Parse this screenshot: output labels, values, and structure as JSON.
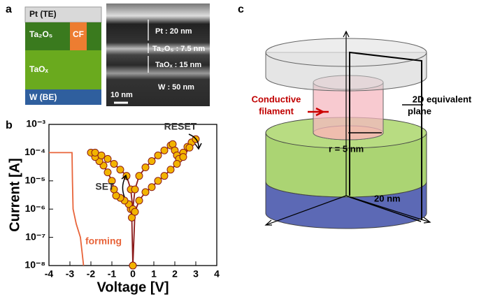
{
  "panel_a": {
    "label": "a",
    "layers": [
      "Pt (TE)",
      "Ta₂O₅",
      "CF",
      "TaOₓ",
      "W (BE)"
    ],
    "sem_labels": [
      "Pt : 20 nm",
      "Ta₂O₅ : 7.5 nm",
      "TaOₓ : 15 nm",
      "W : 50 nm"
    ],
    "scale_bar": "10 nm"
  },
  "panel_b": {
    "label": "b"
  },
  "panel_c": {
    "label": "c",
    "filament_label": [
      "Conductive",
      "filament"
    ],
    "plane_label": [
      "2D equivalent",
      "plane"
    ],
    "radius_label": "r = 5 nm",
    "width_label": "20 nm"
  },
  "chart_data": {
    "type": "line",
    "x_label": "Voltage [V]",
    "y_label": "Current [A]",
    "log_y": true,
    "xlim": [
      -4,
      4
    ],
    "xticks": [
      -4,
      -3,
      -2,
      -1,
      0,
      1,
      2,
      3,
      4
    ],
    "ylim": [
      1e-08,
      0.001
    ],
    "yticks": [
      {
        "value": 1e-08,
        "label": "10⁻⁸"
      },
      {
        "value": 1e-07,
        "label": "10⁻⁷"
      },
      {
        "value": 1e-06,
        "label": "10⁻⁶"
      },
      {
        "value": 1e-05,
        "label": "10⁻⁵"
      },
      {
        "value": 0.0001,
        "label": "10⁻⁴"
      },
      {
        "value": 0.001,
        "label": "10⁻³"
      }
    ],
    "series": [
      {
        "color": "#e8643a",
        "markers": false,
        "x": [
          -4,
          -2.9,
          -2.88,
          -2.85,
          -2.7,
          -2.5,
          -2.35
        ],
        "values": [
          0.0001,
          0.0001,
          1e-05,
          1e-06,
          3e-07,
          1e-07,
          1e-08
        ]
      },
      {
        "color": "#8b1a1a",
        "markers": true,
        "marker_color": "#f2b400",
        "x": [
          0,
          -0.05,
          -0.1,
          -0.2,
          -0.4,
          -0.6,
          -0.8,
          -0.9,
          -1,
          -1.2,
          -1.4,
          -1.6,
          -1.8,
          -2,
          -1.8,
          -1.5,
          -1.2,
          -0.9,
          -0.6,
          -0.3,
          -0.1,
          0,
          0.1,
          0.3,
          0.6,
          0.9,
          1.2,
          1.5,
          1.8,
          1.9,
          2.0,
          2.1,
          2.2,
          2.4,
          2.6,
          2.8,
          3.0,
          2.7,
          2.4,
          2.1,
          1.8,
          1.5,
          1.2,
          0.9,
          0.6,
          0.3,
          0.1,
          0
        ],
        "values": [
          1e-08,
          5e-07,
          1e-06,
          1.5e-06,
          2e-06,
          2.5e-06,
          3e-06,
          5e-06,
          1e-05,
          2e-05,
          3.5e-05,
          5e-05,
          7e-05,
          0.0001,
          0.0001,
          8e-05,
          6e-05,
          4e-05,
          2.5e-05,
          1.5e-05,
          5e-06,
          1e-06,
          5e-06,
          1.5e-05,
          3e-05,
          5e-05,
          8e-05,
          0.00012,
          0.00018,
          0.0002,
          0.00012,
          8e-05,
          6e-05,
          0.0001,
          0.00016,
          0.00023,
          0.0003,
          0.00015,
          7e-05,
          4e-05,
          2.5e-05,
          1.5e-05,
          1e-05,
          6e-06,
          4e-06,
          2e-06,
          8e-07,
          1e-08
        ]
      }
    ],
    "annotations": [
      "RESET",
      "SET",
      "forming"
    ]
  }
}
